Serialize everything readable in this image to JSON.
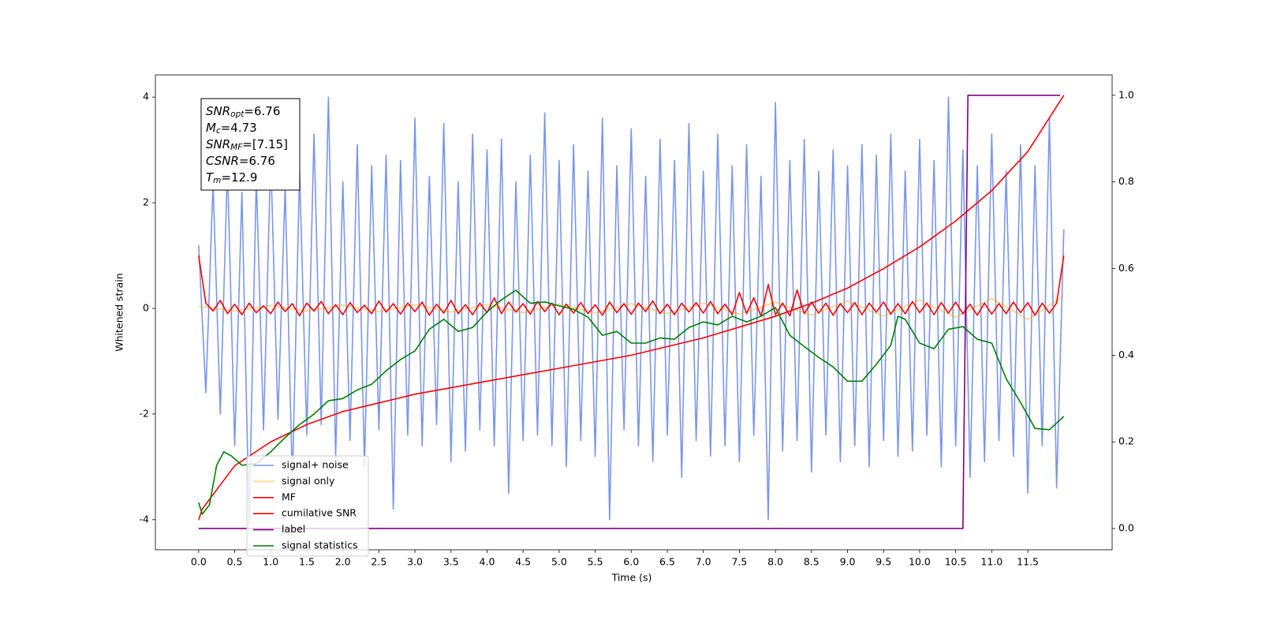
{
  "chart_data": {
    "type": "line",
    "xlabel": "Time (s)",
    "ylabel": "Whitened strain",
    "xlim": [
      -0.6,
      12.67
    ],
    "ylim": [
      -4.57,
      4.42
    ],
    "y2lim": [
      -0.049,
      1.047
    ],
    "xticks": [
      {
        "value": 0,
        "label": "0.0"
      },
      0.5,
      {
        "value": 1,
        "label": "1.0"
      },
      1.5,
      {
        "value": 2,
        "label": "2.0"
      },
      2.5,
      {
        "value": 3,
        "label": "3.0"
      },
      3.5,
      {
        "value": 4,
        "label": "4.0"
      },
      4.5,
      {
        "value": 5,
        "label": "5.0"
      },
      5.5,
      {
        "value": 6,
        "label": "6.0"
      },
      6.5,
      {
        "value": 7,
        "label": "7.0"
      },
      7.5,
      {
        "value": 8,
        "label": "8.0"
      },
      8.5,
      {
        "value": 9,
        "label": "9.0"
      },
      9.5,
      {
        "value": 10,
        "label": "10.0"
      },
      10.5,
      {
        "value": 11,
        "label": "11.0"
      },
      11.5
    ],
    "yticks": [
      -4,
      -2,
      0,
      2,
      4
    ],
    "y2ticks": [
      {
        "value": 0,
        "label": "0.0"
      },
      0.2,
      0.4,
      0.6,
      0.8,
      {
        "value": 1,
        "label": "1.0"
      }
    ],
    "grid": false,
    "legend": "lower left",
    "annotations": [
      {
        "main": "SNR",
        "sub": "opt",
        "rest": "=6.76"
      },
      {
        "main": "M",
        "sub": "c",
        "rest": "=4.73"
      },
      {
        "main": "SNR",
        "sub": "MF",
        "rest": "=[7.15]"
      },
      {
        "main": "CSNR",
        "rest": "=6.76"
      },
      {
        "main": "T",
        "sub": "m",
        "rest": "=12.9"
      }
    ],
    "x": [
      0,
      0.1,
      0.2,
      0.3,
      0.4,
      0.5,
      0.6,
      0.7,
      0.8,
      0.9,
      1.0,
      1.1,
      1.2,
      1.3,
      1.4,
      1.5,
      1.6,
      1.7,
      1.8,
      1.9,
      2.0,
      2.1,
      2.2,
      2.3,
      2.4,
      2.5,
      2.6,
      2.7,
      2.8,
      2.9,
      3.0,
      3.1,
      3.2,
      3.3,
      3.4,
      3.5,
      3.6,
      3.7,
      3.8,
      3.9,
      4.0,
      4.1,
      4.2,
      4.3,
      4.4,
      4.5,
      4.6,
      4.7,
      4.8,
      4.9,
      5.0,
      5.1,
      5.2,
      5.3,
      5.4,
      5.5,
      5.6,
      5.7,
      5.8,
      5.9,
      6.0,
      6.1,
      6.2,
      6.3,
      6.4,
      6.5,
      6.6,
      6.7,
      6.8,
      6.9,
      7.0,
      7.1,
      7.2,
      7.3,
      7.4,
      7.5,
      7.6,
      7.7,
      7.8,
      7.9,
      8.0,
      8.1,
      8.2,
      8.3,
      8.4,
      8.5,
      8.6,
      8.7,
      8.8,
      8.9,
      9.0,
      9.1,
      9.2,
      9.3,
      9.4,
      9.5,
      9.6,
      9.7,
      9.8,
      9.9,
      10.0,
      10.1,
      10.2,
      10.3,
      10.4,
      10.5,
      10.6,
      10.7,
      10.8,
      10.9,
      11.0,
      11.1,
      11.2,
      11.3,
      11.4,
      11.5,
      11.6,
      11.7,
      11.8,
      11.9,
      12.0
    ],
    "series": [
      {
        "name": "signal+ noise",
        "color": "#4169e1",
        "alpha": 0.7,
        "values": [
          1.2,
          -1.6,
          2.4,
          -2.0,
          2.7,
          -2.6,
          2.2,
          -4.1,
          2.5,
          -2.3,
          2.9,
          -2.1,
          2.3,
          -3.3,
          2.6,
          -2.4,
          3.3,
          -2.2,
          4.0,
          -2.8,
          2.4,
          -2.5,
          3.1,
          -3.0,
          2.7,
          -2.3,
          2.9,
          -3.8,
          2.8,
          -2.4,
          3.6,
          -2.6,
          2.5,
          -2.2,
          3.5,
          -2.9,
          2.4,
          -2.7,
          3.3,
          -2.3,
          3.0,
          -2.6,
          3.2,
          -3.5,
          2.4,
          -2.5,
          2.9,
          -2.4,
          3.7,
          -2.6,
          2.8,
          -3.0,
          3.1,
          -2.5,
          2.6,
          -2.8,
          3.6,
          -4.0,
          2.7,
          -2.3,
          3.4,
          -2.6,
          2.5,
          -2.9,
          3.2,
          -2.4,
          2.8,
          -3.2,
          3.5,
          -2.5,
          2.6,
          -2.8,
          3.3,
          -2.6,
          2.7,
          -2.9,
          3.1,
          -2.4,
          2.5,
          -4.0,
          3.9,
          -2.7,
          2.8,
          -2.5,
          3.2,
          -3.1,
          2.6,
          -2.4,
          3.0,
          -2.9,
          2.7,
          -2.6,
          3.1,
          -3.0,
          2.9,
          -2.5,
          3.3,
          -2.8,
          2.6,
          -2.7,
          3.2,
          -2.4,
          2.8,
          -3.0,
          4.0,
          -2.6,
          3.0,
          -3.2,
          2.7,
          -2.9,
          3.3,
          -2.5,
          2.6,
          -2.8,
          3.1,
          -3.5,
          2.7,
          -2.6,
          3.6,
          -3.4,
          1.5
        ]
      },
      {
        "name": "signal only",
        "color": "#ffa500",
        "alpha": 0.5,
        "x": [
          0,
          0.5,
          1,
          1.5,
          2,
          2.5,
          3,
          3.5,
          4,
          4.5,
          5,
          5.5,
          6,
          6.5,
          7,
          7.5,
          8,
          8.5,
          9,
          9.5,
          10,
          10.5,
          11,
          11.5,
          12
        ],
        "values": [
          0.04,
          -0.05,
          0.05,
          -0.05,
          0.06,
          -0.06,
          0.07,
          -0.07,
          0.07,
          -0.08,
          0.08,
          -0.09,
          0.09,
          -0.1,
          0.1,
          -0.11,
          0.12,
          -0.13,
          0.14,
          -0.15,
          0.16,
          -0.17,
          0.19,
          -0.21,
          0.24
        ]
      },
      {
        "name": "MF",
        "color": "#ff0000",
        "alpha": 1,
        "values": [
          1.0,
          0.1,
          -0.05,
          0.15,
          -0.1,
          0.08,
          -0.12,
          0.1,
          -0.08,
          0.05,
          -0.1,
          0.12,
          -0.06,
          0.09,
          -0.14,
          0.1,
          -0.05,
          0.13,
          -0.1,
          0.07,
          -0.12,
          0.11,
          -0.08,
          0.06,
          -0.1,
          0.14,
          -0.07,
          0.09,
          -0.11,
          0.1,
          -0.06,
          0.12,
          -0.13,
          0.08,
          -0.09,
          0.15,
          -0.1,
          0.07,
          -0.12,
          0.1,
          -0.08,
          0.2,
          -0.1,
          0.12,
          -0.07,
          0.09,
          -0.11,
          0.13,
          -0.06,
          0.1,
          -0.12,
          0.08,
          -0.09,
          0.11,
          -0.1,
          0.07,
          -0.13,
          0.12,
          -0.08,
          0.09,
          -0.11,
          0.1,
          -0.06,
          0.14,
          -0.1,
          0.08,
          -0.12,
          0.1,
          -0.07,
          0.11,
          -0.09,
          0.13,
          -0.1,
          0.08,
          -0.12,
          0.3,
          -0.1,
          0.2,
          -0.15,
          0.45,
          -0.12,
          0.1,
          -0.14,
          0.35,
          -0.1,
          0.12,
          -0.09,
          0.1,
          -0.13,
          0.09,
          -0.08,
          0.11,
          -0.12,
          0.1,
          -0.07,
          0.12,
          -0.11,
          0.09,
          -0.1,
          0.13,
          -0.08,
          0.1,
          -0.12,
          0.11,
          -0.09,
          0.12,
          -0.1,
          0.08,
          -0.13,
          0.1,
          -0.11,
          0.09,
          -0.1,
          0.12,
          -0.08,
          0.11,
          -0.13,
          0.1,
          -0.09,
          0.1,
          1.0
        ]
      },
      {
        "name": "cumilative SNR",
        "color": "#ff0000",
        "alpha": 1,
        "axis": "y2",
        "x": [
          0,
          0.05,
          0.5,
          1,
          1.5,
          2,
          2.5,
          3,
          3.5,
          4,
          4.5,
          5,
          5.5,
          6,
          6.5,
          7,
          7.5,
          8,
          8.5,
          9,
          9.5,
          10,
          10.5,
          11,
          11.5,
          12
        ],
        "values": [
          0.02,
          0.045,
          0.145,
          0.2,
          0.24,
          0.27,
          0.29,
          0.31,
          0.325,
          0.34,
          0.355,
          0.37,
          0.385,
          0.4,
          0.42,
          0.44,
          0.465,
          0.49,
          0.52,
          0.555,
          0.6,
          0.65,
          0.71,
          0.78,
          0.87,
          1.0
        ]
      },
      {
        "name": "label",
        "color": "#800080",
        "alpha": 1,
        "axis": "y2",
        "x": [
          0,
          10.6,
          10.67,
          11.95
        ],
        "values": [
          0,
          0,
          1,
          1
        ]
      },
      {
        "name": "signal statistics",
        "color": "#008000",
        "alpha": 1,
        "axis": "y2",
        "x": [
          0,
          0.05,
          0.15,
          0.25,
          0.35,
          0.45,
          0.6,
          0.8,
          1.0,
          1.2,
          1.4,
          1.6,
          1.8,
          2.0,
          2.2,
          2.4,
          2.6,
          2.8,
          3.0,
          3.2,
          3.4,
          3.6,
          3.8,
          4.0,
          4.2,
          4.4,
          4.6,
          4.8,
          5.0,
          5.2,
          5.4,
          5.6,
          5.8,
          6.0,
          6.2,
          6.4,
          6.6,
          6.8,
          7.0,
          7.2,
          7.4,
          7.6,
          7.8,
          8.0,
          8.2,
          8.4,
          8.6,
          8.8,
          9.0,
          9.2,
          9.4,
          9.6,
          9.7,
          9.8,
          10.0,
          10.2,
          10.4,
          10.6,
          10.8,
          11.0,
          11.2,
          11.4,
          11.6,
          11.8,
          12.0
        ],
        "values": [
          0.06,
          0.033,
          0.055,
          0.146,
          0.177,
          0.168,
          0.146,
          0.15,
          0.177,
          0.21,
          0.24,
          0.264,
          0.295,
          0.3,
          0.32,
          0.333,
          0.364,
          0.39,
          0.41,
          0.46,
          0.483,
          0.455,
          0.464,
          0.5,
          0.528,
          0.55,
          0.52,
          0.523,
          0.514,
          0.506,
          0.488,
          0.446,
          0.455,
          0.428,
          0.428,
          0.44,
          0.437,
          0.464,
          0.477,
          0.47,
          0.49,
          0.477,
          0.49,
          0.51,
          0.446,
          0.42,
          0.395,
          0.373,
          0.34,
          0.34,
          0.379,
          0.423,
          0.49,
          0.483,
          0.428,
          0.415,
          0.46,
          0.466,
          0.437,
          0.428,
          0.346,
          0.291,
          0.231,
          0.228,
          0.259
        ]
      }
    ]
  }
}
